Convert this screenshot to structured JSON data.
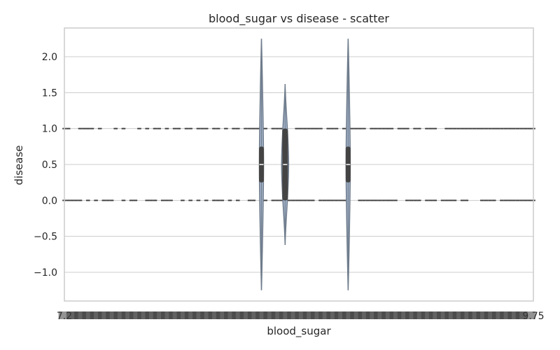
{
  "chart_data": {
    "type": "violin",
    "title": "blood_sugar vs disease - scatter",
    "xlabel": "blood_sugar",
    "ylabel": "disease",
    "ylim": [
      -1.4,
      2.4
    ],
    "yticks": [
      -1.0,
      -0.5,
      0.0,
      0.5,
      1.0,
      1.5,
      2.0
    ],
    "ytick_labels": [
      "−1.0",
      "−0.5",
      "0.0",
      "0.5",
      "1.0",
      "1.5",
      "2.0"
    ],
    "grid": true,
    "x_tick_labels_note": "about 120 overlapping category tick labels; only the first and last are legible",
    "x_tick_first": "7.2",
    "x_tick_last": "9.75",
    "category_count": 120,
    "colors": {
      "violin_fill": "#a8b8d0",
      "violin_edge": "#6f7c8c",
      "box": "#444444",
      "grid": "#cccccc",
      "frame": "#cccccc"
    },
    "disease_values": [
      0,
      1
    ],
    "marker_groups": [
      {
        "disease": 1,
        "from": 0,
        "to": 119,
        "hidden": [
          2,
          3,
          8,
          10,
          11,
          12,
          14,
          16,
          17,
          18,
          20,
          22,
          25,
          27,
          30,
          33,
          37,
          40,
          42,
          45,
          50,
          52,
          56,
          57,
          58,
          66,
          70,
          77,
          84,
          88,
          91,
          95,
          96
        ]
      },
      {
        "disease": 0,
        "from": 0,
        "to": 119,
        "hidden": [
          5,
          7,
          9,
          13,
          14,
          16,
          19,
          20,
          24,
          28,
          29,
          31,
          33,
          35,
          37,
          41,
          43,
          45,
          46,
          49,
          52,
          56,
          64,
          73,
          74,
          85,
          86,
          91,
          95,
          100,
          103,
          104,
          105,
          110
        ]
      }
    ],
    "violins": [
      {
        "category_index": 50,
        "min": -1.25,
        "max": 2.25,
        "q1": 0.25,
        "median": 0.5,
        "q3": 0.75,
        "max_density_half_width": 3
      },
      {
        "category_index": 56,
        "min": -0.62,
        "max": 1.62,
        "q1": 0.0,
        "median": 0.5,
        "q3": 1.0,
        "max_density_half_width": 5
      },
      {
        "category_index": 72,
        "min": -1.25,
        "max": 2.25,
        "q1": 0.25,
        "median": 0.5,
        "q3": 0.75,
        "max_density_half_width": 3
      }
    ]
  }
}
